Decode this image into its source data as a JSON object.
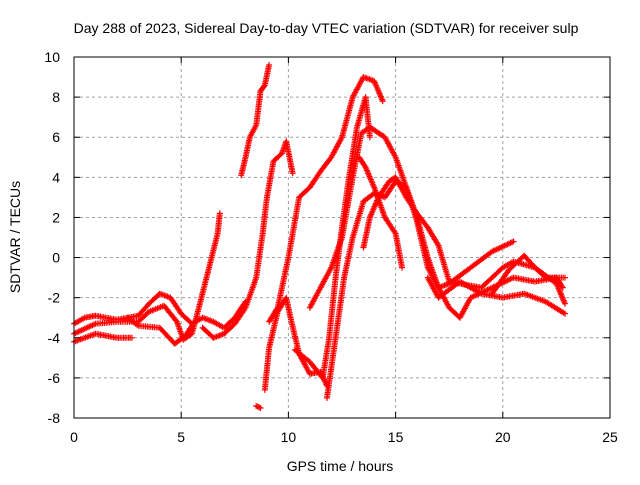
{
  "chart_data": {
    "type": "scatter",
    "title": "Day 288 of 2023, Sidereal Day-to-day VTEC variation (SDTVAR) for receiver sulp",
    "xlabel": "GPS time / hours",
    "ylabel": "SDTVAR / TECUs",
    "xlim": [
      0,
      25
    ],
    "ylim": [
      -8,
      10
    ],
    "xticks": [
      0,
      5,
      10,
      15,
      20,
      25
    ],
    "yticks": [
      -8,
      -6,
      -4,
      -2,
      0,
      2,
      4,
      6,
      8,
      10
    ],
    "grid": true,
    "marker": "+",
    "color": "#ff0000",
    "series": [
      {
        "name": "arc-1",
        "points": [
          [
            0,
            -4.2
          ],
          [
            1,
            -3.8
          ],
          [
            2,
            -4.0
          ],
          [
            2.7,
            -4.0
          ]
        ]
      },
      {
        "name": "arc-2",
        "points": [
          [
            0,
            -3.3
          ],
          [
            0.5,
            -3.0
          ],
          [
            1,
            -2.9
          ],
          [
            2,
            -3.1
          ],
          [
            3,
            -2.9
          ],
          [
            3.5,
            -2.3
          ],
          [
            4,
            -1.8
          ],
          [
            4.5,
            -2.0
          ],
          [
            5,
            -2.8
          ],
          [
            5.5,
            -3.3
          ],
          [
            6,
            -3.0
          ],
          [
            6.5,
            -3.2
          ],
          [
            7,
            -3.5
          ],
          [
            7.5,
            -3.0
          ],
          [
            8,
            -2.2
          ]
        ]
      },
      {
        "name": "arc-3",
        "points": [
          [
            0,
            -3.8
          ],
          [
            1,
            -3.3
          ],
          [
            2,
            -3.2
          ],
          [
            3,
            -3.2
          ],
          [
            3.5,
            -2.7
          ],
          [
            4.2,
            -2.4
          ],
          [
            4.8,
            -3.2
          ],
          [
            5.1,
            -4.1
          ],
          [
            5.5,
            -3.8
          ],
          [
            5.8,
            -2.6
          ],
          [
            6.3,
            -0.5
          ],
          [
            6.7,
            1.2
          ],
          [
            6.8,
            2.2
          ]
        ]
      },
      {
        "name": "arc-4",
        "points": [
          [
            2.5,
            -3.0
          ],
          [
            3,
            -3.4
          ],
          [
            4,
            -3.5
          ],
          [
            4.7,
            -4.3
          ],
          [
            5.2,
            -3.9
          ],
          [
            5.5,
            -3.4
          ]
        ]
      },
      {
        "name": "arc-5",
        "points": [
          [
            6,
            -3.5
          ],
          [
            6.5,
            -4.0
          ],
          [
            7,
            -3.8
          ],
          [
            7.5,
            -3.3
          ],
          [
            8,
            -2.5
          ],
          [
            8.5,
            -1.0
          ],
          [
            8.8,
            1.2
          ],
          [
            9,
            3.0
          ],
          [
            9.3,
            4.8
          ],
          [
            9.7,
            5.2
          ],
          [
            9.9,
            5.8
          ],
          [
            10.2,
            4.2
          ]
        ]
      },
      {
        "name": "arc-6",
        "points": [
          [
            7.8,
            4.1
          ],
          [
            8.0,
            5.0
          ],
          [
            8.2,
            6.0
          ],
          [
            8.5,
            6.6
          ],
          [
            8.7,
            8.3
          ],
          [
            8.9,
            8.6
          ],
          [
            9.1,
            9.6
          ]
        ]
      },
      {
        "name": "arc-7",
        "points": [
          [
            8.9,
            -6.6
          ],
          [
            9.1,
            -4.5
          ],
          [
            9.5,
            -2.7
          ],
          [
            9.9,
            -2.0
          ],
          [
            10.1,
            -3.0
          ],
          [
            10.5,
            -4.8
          ],
          [
            11,
            -5.8
          ],
          [
            11.5,
            -5.7
          ],
          [
            11.8,
            -6.4
          ]
        ]
      },
      {
        "name": "arc-8",
        "points": [
          [
            9.1,
            -3.2
          ],
          [
            9.5,
            -2.5
          ],
          [
            10,
            0.0
          ],
          [
            10.5,
            3.0
          ],
          [
            11,
            3.5
          ],
          [
            11.5,
            4.3
          ],
          [
            12,
            5.0
          ],
          [
            12.5,
            6.0
          ],
          [
            13,
            8.0
          ],
          [
            13.5,
            9.0
          ],
          [
            14,
            8.8
          ],
          [
            14.4,
            7.8
          ]
        ]
      },
      {
        "name": "arc-9",
        "points": [
          [
            8.5,
            -7.4
          ],
          [
            8.7,
            -7.5
          ]
        ]
      },
      {
        "name": "arc-10",
        "points": [
          [
            10.3,
            -4.6
          ],
          [
            11,
            -5.2
          ],
          [
            11.6,
            -6.0
          ],
          [
            11.9,
            -4.0
          ],
          [
            12.2,
            -1.0
          ],
          [
            12.5,
            1.5
          ],
          [
            12.8,
            3.8
          ],
          [
            13.2,
            6.5
          ],
          [
            13.6,
            8.0
          ],
          [
            13.8,
            6.0
          ]
        ]
      },
      {
        "name": "arc-11",
        "points": [
          [
            11.0,
            -2.5
          ],
          [
            11.5,
            -1.5
          ],
          [
            12,
            -0.5
          ],
          [
            12.5,
            1.0
          ],
          [
            13,
            4.0
          ],
          [
            13.4,
            6.2
          ],
          [
            13.8,
            6.5
          ],
          [
            14.5,
            6.0
          ],
          [
            15,
            5.0
          ],
          [
            15.5,
            3.5
          ],
          [
            16,
            2.0
          ],
          [
            16.5,
            0.0
          ],
          [
            17,
            -1.5
          ],
          [
            17.5,
            -2.5
          ],
          [
            18,
            -3.0
          ],
          [
            18.5,
            -2.0
          ],
          [
            19.5,
            -1.5
          ],
          [
            20.5,
            -1.0
          ],
          [
            21.5,
            -1.2
          ],
          [
            22.5,
            -1.0
          ],
          [
            22.8,
            -1.5
          ]
        ]
      },
      {
        "name": "arc-12",
        "points": [
          [
            11.8,
            -7.0
          ],
          [
            12.2,
            -4.0
          ],
          [
            12.6,
            -1.0
          ],
          [
            13,
            1.0
          ],
          [
            13.5,
            2.8
          ],
          [
            14,
            3.2
          ],
          [
            14.5,
            3.0
          ],
          [
            15,
            3.8
          ],
          [
            15.5,
            3.5
          ],
          [
            16,
            1.8
          ],
          [
            16.5,
            -0.5
          ],
          [
            17,
            -1.5
          ],
          [
            17.5,
            -1.3
          ],
          [
            18.5,
            -0.5
          ],
          [
            19.5,
            0.3
          ],
          [
            20.5,
            0.8
          ]
        ]
      },
      {
        "name": "arc-13",
        "points": [
          [
            13.3,
            5.0
          ],
          [
            13.6,
            4.5
          ],
          [
            14,
            3.5
          ],
          [
            14.5,
            2.0
          ],
          [
            15,
            1.2
          ],
          [
            15.3,
            -0.5
          ]
        ]
      },
      {
        "name": "arc-14",
        "points": [
          [
            13.5,
            0.5
          ],
          [
            13.8,
            2.0
          ],
          [
            14.2,
            3.0
          ],
          [
            14.7,
            3.8
          ],
          [
            15,
            4.0
          ],
          [
            15.5,
            3.0
          ],
          [
            16,
            2.2
          ],
          [
            16.5,
            1.5
          ],
          [
            17,
            0.6
          ],
          [
            17.5,
            -1.2
          ],
          [
            18,
            -1.3
          ],
          [
            19,
            -1.5
          ],
          [
            20,
            -0.5
          ],
          [
            20.5,
            -0.2
          ],
          [
            21.5,
            -0.5
          ],
          [
            22.5,
            -1.3
          ],
          [
            22.9,
            -2.3
          ]
        ]
      },
      {
        "name": "arc-15",
        "points": [
          [
            16.5,
            -1.0
          ],
          [
            17,
            -2.0
          ],
          [
            18,
            -1.2
          ],
          [
            19,
            -1.8
          ],
          [
            20,
            -2.0
          ],
          [
            21,
            -1.8
          ],
          [
            22,
            -2.2
          ],
          [
            22.9,
            -2.8
          ]
        ]
      },
      {
        "name": "arc-16",
        "points": [
          [
            19.5,
            -1.8
          ],
          [
            20.3,
            -0.6
          ],
          [
            21,
            0.1
          ],
          [
            21.5,
            -0.5
          ],
          [
            22,
            -1.0
          ],
          [
            22.9,
            -1.0
          ]
        ]
      }
    ]
  }
}
